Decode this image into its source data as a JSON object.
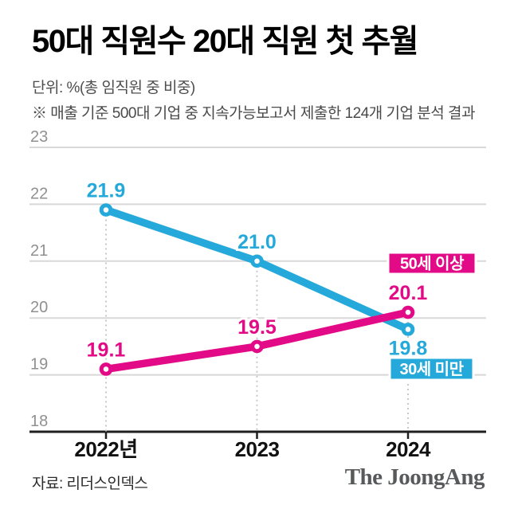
{
  "header": {
    "title": "50대 직원수 20대 직원 첫 추월",
    "unit_note": "단위: %(총 임직원 중 비중)",
    "method_note": "※ 매출 기준 500대 기업 중 지속가능보고서 제출한 124개 기업 분석 결과"
  },
  "footer": {
    "source": "자료: 리더스인덱스",
    "logo": "The JoongAng"
  },
  "colors": {
    "cyan": "#25a9da",
    "pink": "#e20a86",
    "grid": "#d8d8d8",
    "axis": "#1f1f1f",
    "y_tick_label": "#909090",
    "x_tick_label": "#111111",
    "dotted_guide": "#c3c3c3",
    "label_text_on_badge": "#ffffff"
  },
  "chart_data": {
    "type": "line",
    "title": "50대 직원수 20대 직원 첫 추월",
    "unit": "%",
    "categories": [
      "2022년",
      "2023",
      "2024"
    ],
    "series": [
      {
        "name": "30세 미만",
        "slug": "under-30",
        "color_key": "cyan",
        "values": [
          21.9,
          21.0,
          19.8
        ],
        "value_labels": [
          "21.9",
          "21.0",
          "19.8"
        ],
        "label_sides": [
          "above",
          "above",
          "below"
        ]
      },
      {
        "name": "50세 이상",
        "slug": "over-50",
        "color_key": "pink",
        "values": [
          19.1,
          19.5,
          20.1
        ],
        "value_labels": [
          "19.1",
          "19.5",
          "20.1"
        ],
        "label_sides": [
          "above",
          "above",
          "above"
        ]
      }
    ],
    "ylim": [
      18,
      23
    ],
    "yticks": [
      18,
      19,
      20,
      21,
      22,
      23
    ],
    "grid": true,
    "legend_position": "inline-badges",
    "value_labels_shown": true
  }
}
